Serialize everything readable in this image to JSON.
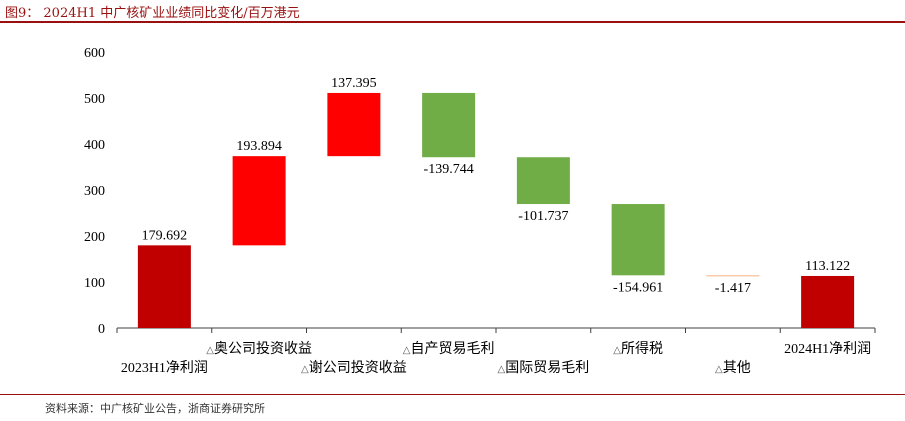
{
  "title": "图9： 2024H1 中广核矿业业绩同比变化/百万港元",
  "source": "资料来源：中广核矿业公告，浙商证券研究所",
  "chart_data": {
    "type": "bar",
    "subtype": "waterfall",
    "title": "",
    "xlabel": "",
    "ylabel": "",
    "ylim": [
      0,
      600
    ],
    "yticks": [
      0,
      100,
      200,
      300,
      400,
      500,
      600
    ],
    "grid": false,
    "legend": "none",
    "categories": [
      "2023H1净利润",
      "奥公司投资收益",
      "谢公司投资收益",
      "自产贸易毛利",
      "国际贸易毛利",
      "所得税",
      "其他",
      "2024H1净利润"
    ],
    "category_markers": [
      "",
      "△",
      "△",
      "△",
      "△",
      "△",
      "△",
      ""
    ],
    "values": [
      179.692,
      193.894,
      137.395,
      -139.744,
      -101.737,
      -154.961,
      -1.417,
      113.122
    ],
    "data_labels": [
      "179.692",
      "193.894",
      "137.395",
      "-139.744",
      "-101.737",
      "-154.961",
      "-1.417",
      "113.122"
    ],
    "bar_kind": [
      "total",
      "delta",
      "delta",
      "delta",
      "delta",
      "delta",
      "delta",
      "total"
    ],
    "colors": {
      "total": "#c00000",
      "increase": "#ff0000",
      "decrease": "#70ad47",
      "other": "#f4b183",
      "axis": "#404040"
    }
  }
}
